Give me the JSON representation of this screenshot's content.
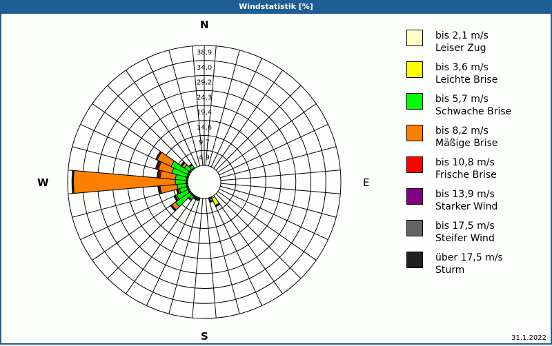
{
  "window": {
    "title": "Windstatistik [%]",
    "date": "31.1.2022"
  },
  "compass": {
    "n": "N",
    "e": "E",
    "s": "S",
    "w": "W"
  },
  "legend": {
    "items": [
      {
        "range": "bis 2,1 m/s",
        "name": "Leiser Zug",
        "color": "#ffffc8"
      },
      {
        "range": "bis 3,6 m/s",
        "name": "Leichte Brise",
        "color": "#ffff00"
      },
      {
        "range": "bis 5,7 m/s",
        "name": "Schwache Brise",
        "color": "#00ff00"
      },
      {
        "range": "bis 8,2 m/s",
        "name": "Mäßige Brise",
        "color": "#ff8000"
      },
      {
        "range": "bis 10,8 m/s",
        "name": "Frische Brise",
        "color": "#ff0000"
      },
      {
        "range": "bis 13,9 m/s",
        "name": "Starker Wind",
        "color": "#800080"
      },
      {
        "range": "bis 17,5 m/s",
        "name": "Steifer Wind",
        "color": "#646464"
      },
      {
        "range": "über 17,5 m/s",
        "name": "Sturm",
        "color": "#202020"
      }
    ]
  },
  "chart_data": {
    "type": "wind-rose",
    "title": "Windstatistik [%]",
    "unit": "%",
    "radial_ticks": [
      "4,9",
      "9,7",
      "14,6",
      "19,4",
      "24,3",
      "29,2",
      "34,0",
      "38,9"
    ],
    "radial_max": 38.9,
    "sector_width_deg": 10,
    "directions_deg": [
      150,
      160,
      200,
      210,
      220,
      230,
      240,
      250,
      260,
      270,
      280,
      290,
      300,
      310,
      320
    ],
    "series": [
      {
        "name": "bis 2,1 m/s",
        "values": [
          0.5,
          0.3,
          0.3,
          0.3,
          0.3,
          0.3,
          0.3,
          0.3,
          0.3,
          0.3,
          0.3,
          0.3,
          0.3,
          0.3,
          0.2
        ]
      },
      {
        "name": "bis 3,6 m/s",
        "values": [
          2.5,
          0.2,
          0.2,
          0.2,
          0.2,
          0.2,
          0.2,
          0.2,
          0.2,
          0.2,
          0.2,
          0.2,
          0.2,
          0.2,
          0.1
        ]
      },
      {
        "name": "bis 5,7 m/s",
        "values": [
          0,
          0.5,
          0,
          0,
          1.0,
          5.5,
          4.0,
          2.5,
          3.0,
          3.5,
          3.5,
          5.0,
          6.0,
          2.0,
          1.0
        ]
      },
      {
        "name": "bis 8,2 m/s",
        "values": [
          0,
          0,
          0,
          0,
          0,
          1.5,
          0.5,
          0.5,
          5.5,
          33.0,
          5.0,
          4.5,
          5.0,
          1.0,
          0
        ]
      },
      {
        "name": "bis 10,8 m/s",
        "values": [
          0,
          0,
          0,
          0,
          0,
          0,
          0,
          0,
          0,
          0,
          0.5,
          0.5,
          0,
          0,
          0
        ]
      },
      {
        "name": "bis 13,9 m/s",
        "values": [
          0,
          0,
          0,
          0,
          0,
          0,
          0,
          0,
          0,
          0,
          0,
          0,
          0,
          0,
          0
        ]
      },
      {
        "name": "bis 17,5 m/s",
        "values": [
          0,
          0,
          0,
          0,
          0,
          0,
          0,
          0,
          0,
          0,
          0,
          0,
          0,
          0,
          0
        ]
      },
      {
        "name": "über 17,5 m/s",
        "values": [
          0.5,
          0.5,
          0.5,
          0.5,
          0.5,
          0.5,
          0.5,
          0.5,
          0.5,
          0.5,
          0.5,
          0.5,
          0.5,
          0.5,
          0.5
        ]
      }
    ],
    "legend_position": "right",
    "grid": true
  }
}
